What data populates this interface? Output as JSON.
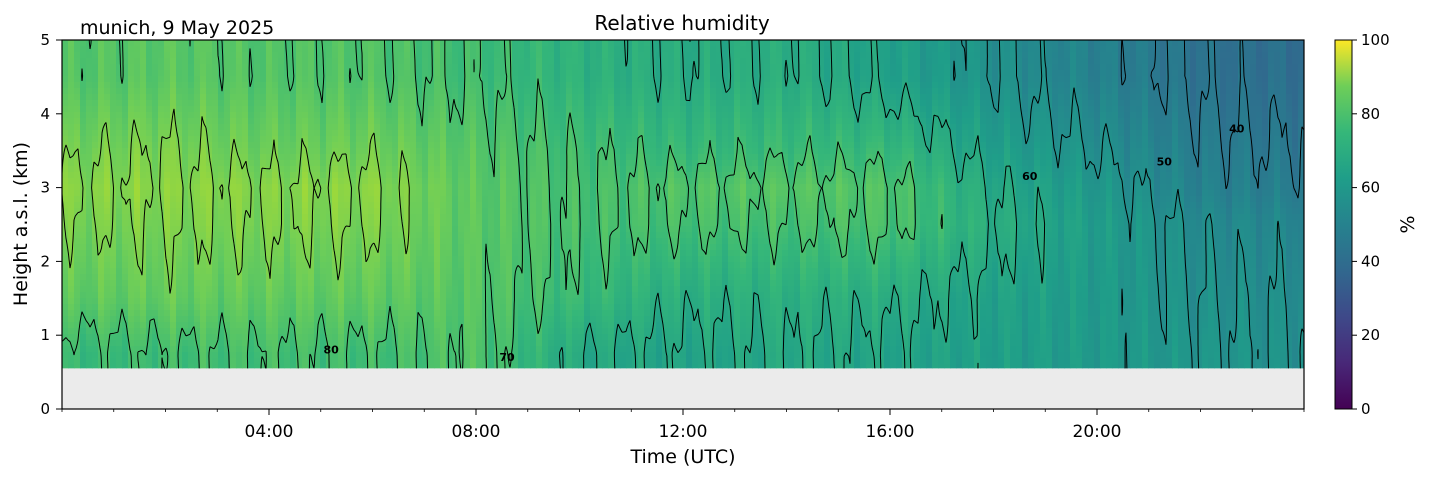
{
  "header": {
    "location_date": "munich, 9 May 2025"
  },
  "chart_data": {
    "type": "heatmap",
    "title": "Relative humidity",
    "xlabel": "Time (UTC)",
    "ylabel": "Height a.s.l. (km)",
    "x_range_hours": [
      0,
      24
    ],
    "xlim": [
      "00:00",
      "24:00"
    ],
    "xticks": [
      {
        "hour": 4,
        "label": "04:00"
      },
      {
        "hour": 8,
        "label": "08:00"
      },
      {
        "hour": 12,
        "label": "12:00"
      },
      {
        "hour": 16,
        "label": "16:00"
      },
      {
        "hour": 20,
        "label": "20:00"
      }
    ],
    "ylim": [
      0,
      5
    ],
    "yticks": [
      0,
      1,
      2,
      3,
      4,
      5
    ],
    "data_lower_limit_km": 0.55,
    "no_data_color": "#ebebeb",
    "colormap": "viridis",
    "colorbar": {
      "label": "%",
      "range": [
        0,
        100
      ],
      "ticks": [
        0,
        20,
        40,
        60,
        80,
        100
      ]
    },
    "contour_levels": [
      40,
      50,
      60,
      70,
      80
    ],
    "contour_labels": [
      {
        "text": "80",
        "hour": 5.2,
        "km": 0.75
      },
      {
        "text": "70",
        "hour": 8.6,
        "km": 0.65
      },
      {
        "text": "60",
        "hour": 18.7,
        "km": 3.1
      },
      {
        "text": "50",
        "hour": 21.3,
        "km": 3.3
      },
      {
        "text": "40",
        "hour": 22.7,
        "km": 3.75
      }
    ],
    "grid": false,
    "rh_field_percent": {
      "hours": [
        0,
        2,
        4,
        6,
        8,
        10,
        12,
        14,
        16,
        18,
        20,
        22,
        24
      ],
      "heights_km": [
        0.75,
        1.5,
        2.5,
        3.0,
        3.5,
        4.5
      ],
      "values": [
        [
          67,
          69,
          70,
          69,
          72,
          60,
          58,
          60,
          58,
          56,
          54,
          52,
          50
        ],
        [
          74,
          76,
          75,
          75,
          73,
          67,
          62,
          63,
          62,
          57,
          54,
          50,
          49
        ],
        [
          79,
          80,
          80,
          80,
          74,
          70,
          70,
          70,
          71,
          62,
          55,
          48,
          46
        ],
        [
          81,
          82,
          81,
          82,
          74,
          70,
          72,
          73,
          72,
          60,
          53,
          44,
          42
        ],
        [
          78,
          80,
          77,
          78,
          73,
          69,
          67,
          68,
          67,
          56,
          50,
          42,
          40
        ],
        [
          72,
          74,
          72,
          72,
          69,
          64,
          61,
          62,
          57,
          50,
          44,
          38,
          36
        ]
      ]
    }
  }
}
